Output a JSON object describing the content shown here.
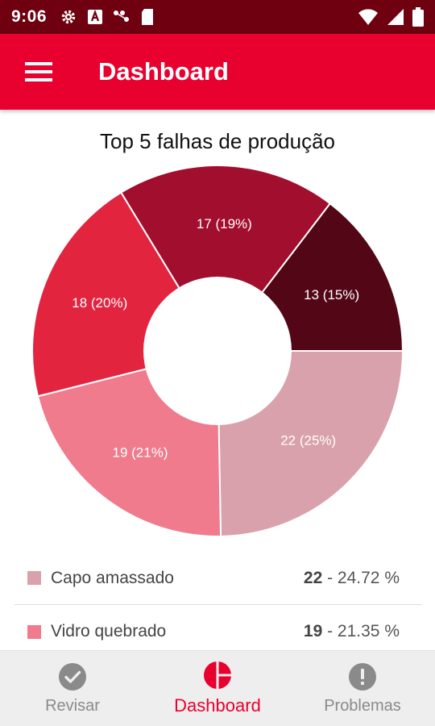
{
  "status_bar": {
    "time": "9:06",
    "left_icons": [
      "gear-icon",
      "a-icon",
      "dots-icon",
      "sd-card-icon"
    ],
    "right_icons": [
      "wifi-icon",
      "signal-icon",
      "battery-icon"
    ]
  },
  "app_bar": {
    "menu_icon": "hamburger-menu-icon",
    "title": "Dashboard",
    "color": "#e8002f"
  },
  "chart_data": {
    "type": "pie",
    "title": "Top 5 falhas de produção",
    "donut": true,
    "slices": [
      {
        "name": "Capo amassado",
        "value": 22,
        "label": "22 (25%)",
        "color": "#d9a1ab"
      },
      {
        "name": "Vidro quebrado",
        "value": 19,
        "label": "19 (21%)",
        "color": "#ef7b8d"
      },
      {
        "name": "",
        "value": 18,
        "label": "18 (20%)",
        "color": "#e2243f"
      },
      {
        "name": "",
        "value": 17,
        "label": "17 (19%)",
        "color": "#a20e2d"
      },
      {
        "name": "",
        "value": 13,
        "label": "13 (15%)",
        "color": "#530716"
      }
    ]
  },
  "legend": [
    {
      "label": "Capo amassado",
      "count": "22",
      "percent": " - 24.72 %",
      "color": "#d9a1ab"
    },
    {
      "label": "Vidro quebrado",
      "count": "19",
      "percent": " - 21.35 %",
      "color": "#ef7b8d"
    }
  ],
  "bottom_nav": [
    {
      "label": "Revisar",
      "icon": "check-circle-icon",
      "active": false
    },
    {
      "label": "Dashboard",
      "icon": "pie-chart-icon",
      "active": true
    },
    {
      "label": "Problemas",
      "icon": "alert-circle-icon",
      "active": false
    }
  ]
}
